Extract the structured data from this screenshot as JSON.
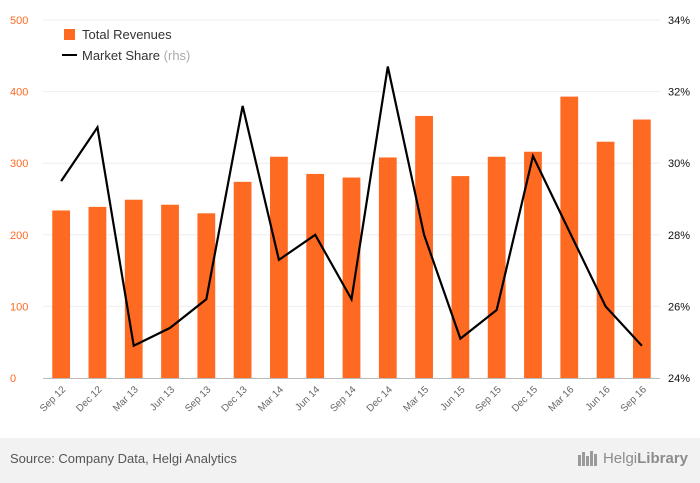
{
  "chart_data": {
    "type": "bar",
    "categories": [
      "Sep 12",
      "Dec 12",
      "Mar 13",
      "Jun 13",
      "Sep 13",
      "Dec 13",
      "Mar 14",
      "Jun 14",
      "Sep 14",
      "Dec 14",
      "Mar 15",
      "Jun 15",
      "Sep 15",
      "Dec 15",
      "Mar 16",
      "Jun 16",
      "Sep 16"
    ],
    "series": [
      {
        "name": "Total Revenues",
        "type": "bar",
        "axis": "left",
        "color": "#ff6a22",
        "values": [
          234,
          239,
          249,
          242,
          230,
          274,
          309,
          285,
          280,
          308,
          366,
          282,
          309,
          316,
          393,
          330,
          361
        ]
      },
      {
        "name": "Market Share",
        "type": "line",
        "axis": "right",
        "color": "#000000",
        "values": [
          29.5,
          31.0,
          24.9,
          25.4,
          26.2,
          31.6,
          27.3,
          28.0,
          26.2,
          32.7,
          28.0,
          25.1,
          25.9,
          30.2,
          28.1,
          26.0,
          24.9
        ]
      }
    ],
    "y_left": {
      "min": 0,
      "max": 500,
      "ticks": [
        "0",
        "100",
        "200",
        "300",
        "400",
        "500"
      ]
    },
    "y_right": {
      "min": 24,
      "max": 34,
      "ticks": [
        "24%",
        "26%",
        "28%",
        "30%",
        "32%",
        "34%"
      ]
    },
    "legend": {
      "position": "top-left",
      "items": [
        {
          "label": "Total Revenues",
          "suffix": ""
        },
        {
          "label": "Market Share",
          "suffix": "(rhs)"
        }
      ]
    },
    "grid": true
  },
  "footer": {
    "source": "Source: Company Data, Helgi Analytics",
    "logo_light": "Helgi",
    "logo_bold": "Library",
    "logo_icon": "helgi-library-logo-icon"
  }
}
